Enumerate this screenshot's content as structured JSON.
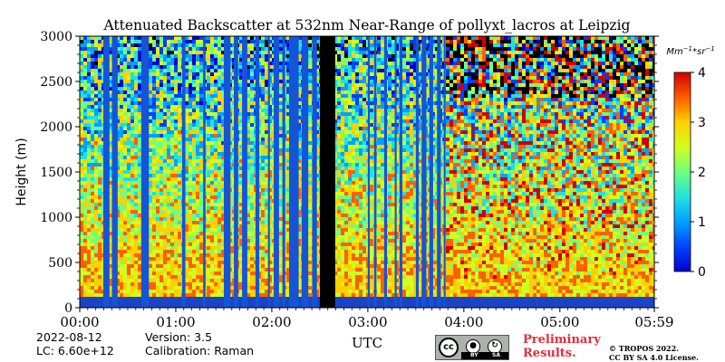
{
  "chart_data": {
    "type": "heatmap",
    "title": "Attenuated Backscatter at 532nm Near-Range of pollyxt_lacros at Leipzig",
    "xlabel": "UTC",
    "ylabel": "Height (m)",
    "xlim_hours": [
      0,
      5.9833
    ],
    "ylim": [
      0,
      3000
    ],
    "x_ticks": [
      "00:00",
      "01:00",
      "02:00",
      "03:00",
      "04:00",
      "05:00",
      "05:59"
    ],
    "x_tick_hours": [
      0,
      1,
      2,
      3,
      4,
      5,
      5.9833
    ],
    "y_ticks": [
      0,
      500,
      1000,
      1500,
      2000,
      2500,
      3000
    ],
    "colorbar": {
      "unit": "Mm^-1*sr^-1",
      "ticks": [
        0,
        1,
        2,
        3,
        4
      ],
      "range": [
        0,
        4
      ],
      "colormap": "jet"
    },
    "colors": {
      "no_signal": "#1455d8",
      "no_data": "#000000",
      "surface_layer": "#1a44c8"
    },
    "no_signal_intervals_hours": [
      [
        0.245,
        0.31
      ],
      [
        0.335,
        0.395
      ],
      [
        0.64,
        0.72
      ],
      [
        1.065,
        1.1
      ],
      [
        1.285,
        1.31
      ],
      [
        1.5,
        1.57
      ],
      [
        1.605,
        1.65
      ],
      [
        1.69,
        1.745
      ],
      [
        1.83,
        1.87
      ],
      [
        1.96,
        1.98
      ],
      [
        2.02,
        2.075
      ],
      [
        2.11,
        2.14
      ],
      [
        2.18,
        2.28
      ],
      [
        2.31,
        2.38
      ],
      [
        2.42,
        2.47
      ],
      [
        3.0,
        3.02
      ],
      [
        3.065,
        3.09
      ],
      [
        3.17,
        3.2
      ],
      [
        3.28,
        3.3
      ],
      [
        3.33,
        3.36
      ],
      [
        3.5,
        3.53
      ],
      [
        3.56,
        3.61
      ],
      [
        3.64,
        3.68
      ],
      [
        3.72,
        3.76
      ],
      [
        3.79,
        3.81
      ]
    ],
    "no_data_intervals_hours": [
      [
        2.5,
        2.66
      ]
    ],
    "signal_profile": {
      "description": "high backscatter near surface decreasing with height",
      "near_surface_m": 500,
      "surface_layer_top_m": 120
    }
  },
  "footer": {
    "date": "2022-08-12",
    "version": "Version: 3.5",
    "lc": "LC: 6.60e+12",
    "calibration": "Calibration: Raman",
    "preliminary_1": "Preliminary",
    "preliminary_2": "Results.",
    "copyright_1": "© TROPOS 2022.",
    "copyright_2": "CC BY SA 4.0 License.",
    "license_badge": {
      "cc": "cc",
      "by": "BY",
      "sa": "SA"
    }
  }
}
